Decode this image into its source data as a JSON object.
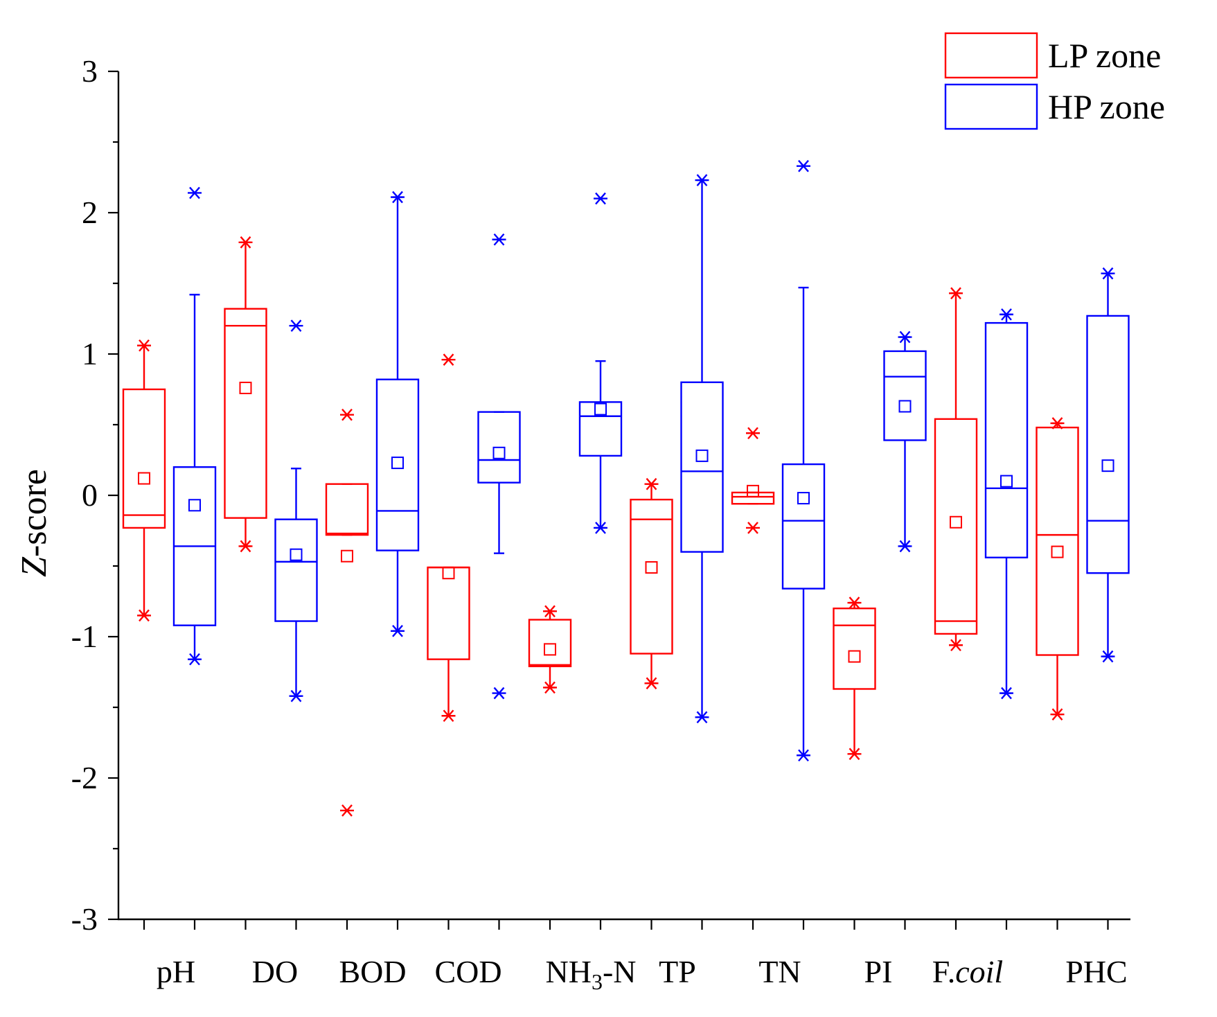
{
  "chart_data": {
    "type": "box",
    "title": "",
    "xlabel": "",
    "ylabel": {
      "italic": "Z",
      "rest": "-score"
    },
    "ylim": [
      -3,
      3
    ],
    "y_ticks": [
      -3,
      -2,
      -1,
      0,
      1,
      2,
      3
    ],
    "y_tick_labels": [
      "-3",
      "-2",
      "-1",
      "0",
      "1",
      "2",
      "3"
    ],
    "colors": {
      "LP": "#ff0000",
      "HP": "#0000ff"
    },
    "legend": {
      "position": "top-right",
      "entries": [
        {
          "series": "LP",
          "label": "LP zone"
        },
        {
          "series": "HP",
          "label": "HP zone"
        }
      ]
    },
    "categories": [
      {
        "label": "pH"
      },
      {
        "label": "DO"
      },
      {
        "label": "BOD"
      },
      {
        "label": "COD"
      },
      {
        "label": "NH3-N",
        "parts": [
          "NH",
          "3",
          "-N"
        ]
      },
      {
        "label": "TP"
      },
      {
        "label": "TN"
      },
      {
        "label": "PI"
      },
      {
        "label": "F.coil",
        "parts": [
          "F.",
          "coil"
        ]
      },
      {
        "label": "PHC"
      }
    ],
    "series": [
      {
        "name": "LP zone",
        "key": "LP",
        "boxes": [
          {
            "category": "pH",
            "q1": -0.23,
            "median": -0.14,
            "q3": 0.75,
            "mean": 0.12,
            "whisker_low": -0.85,
            "whisker_high": 1.06,
            "min": -0.85,
            "max": 1.06,
            "outliers": []
          },
          {
            "category": "DO",
            "q1": -0.16,
            "median": 1.2,
            "q3": 1.32,
            "mean": 0.76,
            "whisker_low": -0.36,
            "whisker_high": 1.79,
            "min": -0.36,
            "max": 1.79,
            "outliers": []
          },
          {
            "category": "BOD",
            "q1": -0.28,
            "median": -0.27,
            "q3": 0.08,
            "mean": -0.43,
            "whisker_low": -0.28,
            "whisker_high": 0.08,
            "min": -2.23,
            "max": 0.57,
            "outliers": [
              0.57,
              -2.23
            ]
          },
          {
            "category": "COD",
            "q1": -1.16,
            "median": -0.51,
            "q3": -0.51,
            "mean": -0.55,
            "whisker_low": -1.56,
            "whisker_high": -0.51,
            "min": -1.56,
            "max": 0.96,
            "outliers": [
              0.96
            ]
          },
          {
            "category": "NH3-N",
            "q1": -1.21,
            "median": -1.2,
            "q3": -0.88,
            "mean": -1.09,
            "whisker_low": -1.36,
            "whisker_high": -0.82,
            "min": -1.36,
            "max": -0.82,
            "outliers": []
          },
          {
            "category": "TP",
            "q1": -1.12,
            "median": -0.17,
            "q3": -0.03,
            "mean": -0.51,
            "whisker_low": -1.33,
            "whisker_high": 0.08,
            "min": -1.33,
            "max": 0.08,
            "outliers": []
          },
          {
            "category": "TN",
            "q1": -0.06,
            "median": -0.01,
            "q3": 0.02,
            "mean": 0.03,
            "whisker_low": -0.06,
            "whisker_high": 0.02,
            "min": -0.23,
            "max": 0.44,
            "outliers": [
              0.44,
              -0.23
            ]
          },
          {
            "category": "PI",
            "q1": -1.37,
            "median": -0.92,
            "q3": -0.8,
            "mean": -1.14,
            "whisker_low": -1.83,
            "whisker_high": -0.76,
            "min": -1.83,
            "max": -0.76,
            "outliers": []
          },
          {
            "category": "F.coil",
            "q1": -0.98,
            "median": -0.89,
            "q3": 0.54,
            "mean": -0.19,
            "whisker_low": -1.06,
            "whisker_high": 1.43,
            "min": -1.06,
            "max": 1.43,
            "outliers": []
          },
          {
            "category": "PHC",
            "q1": -1.13,
            "median": -0.28,
            "q3": 0.48,
            "mean": -0.4,
            "whisker_low": -1.55,
            "whisker_high": 0.51,
            "min": -1.55,
            "max": 0.51,
            "outliers": []
          }
        ]
      },
      {
        "name": "HP zone",
        "key": "HP",
        "boxes": [
          {
            "category": "pH",
            "q1": -0.92,
            "median": -0.36,
            "q3": 0.2,
            "mean": -0.07,
            "whisker_low": -1.16,
            "whisker_high": 1.42,
            "min": -1.16,
            "max": 2.14,
            "outliers": [
              2.14
            ]
          },
          {
            "category": "DO",
            "q1": -0.89,
            "median": -0.47,
            "q3": -0.17,
            "mean": -0.42,
            "whisker_low": -1.42,
            "whisker_high": 0.19,
            "min": -1.42,
            "max": 1.2,
            "outliers": [
              1.2
            ]
          },
          {
            "category": "BOD",
            "q1": -0.39,
            "median": -0.11,
            "q3": 0.82,
            "mean": 0.23,
            "whisker_low": -0.96,
            "whisker_high": 2.11,
            "min": -0.96,
            "max": 2.11,
            "outliers": []
          },
          {
            "category": "COD",
            "q1": 0.09,
            "median": 0.25,
            "q3": 0.59,
            "mean": 0.3,
            "whisker_low": -0.41,
            "whisker_high": 0.59,
            "min": -1.4,
            "max": 1.81,
            "outliers": [
              1.81,
              -1.4
            ]
          },
          {
            "category": "NH3-N",
            "q1": 0.28,
            "median": 0.56,
            "q3": 0.66,
            "mean": 0.61,
            "whisker_low": -0.23,
            "whisker_high": 0.95,
            "min": -0.23,
            "max": 2.1,
            "outliers": [
              2.1
            ]
          },
          {
            "category": "TP",
            "q1": -0.4,
            "median": 0.17,
            "q3": 0.8,
            "mean": 0.28,
            "whisker_low": -1.57,
            "whisker_high": 2.23,
            "min": -1.57,
            "max": 2.23,
            "outliers": []
          },
          {
            "category": "TN",
            "q1": -0.66,
            "median": -0.18,
            "q3": 0.22,
            "mean": -0.02,
            "whisker_low": -1.84,
            "whisker_high": 1.47,
            "min": -1.84,
            "max": 2.33,
            "outliers": [
              2.33
            ]
          },
          {
            "category": "PI",
            "q1": 0.39,
            "median": 0.84,
            "q3": 1.02,
            "mean": 0.63,
            "whisker_low": -0.36,
            "whisker_high": 1.12,
            "min": -0.36,
            "max": 1.12,
            "outliers": []
          },
          {
            "category": "F.coil",
            "q1": -0.44,
            "median": 0.05,
            "q3": 1.22,
            "mean": 0.1,
            "whisker_low": -1.4,
            "whisker_high": 1.28,
            "min": -1.4,
            "max": 1.28,
            "outliers": []
          },
          {
            "category": "PHC",
            "q1": -0.55,
            "median": -0.18,
            "q3": 1.27,
            "mean": 0.21,
            "whisker_low": -1.14,
            "whisker_high": 1.57,
            "min": -1.14,
            "max": 1.57,
            "outliers": []
          }
        ]
      }
    ]
  }
}
